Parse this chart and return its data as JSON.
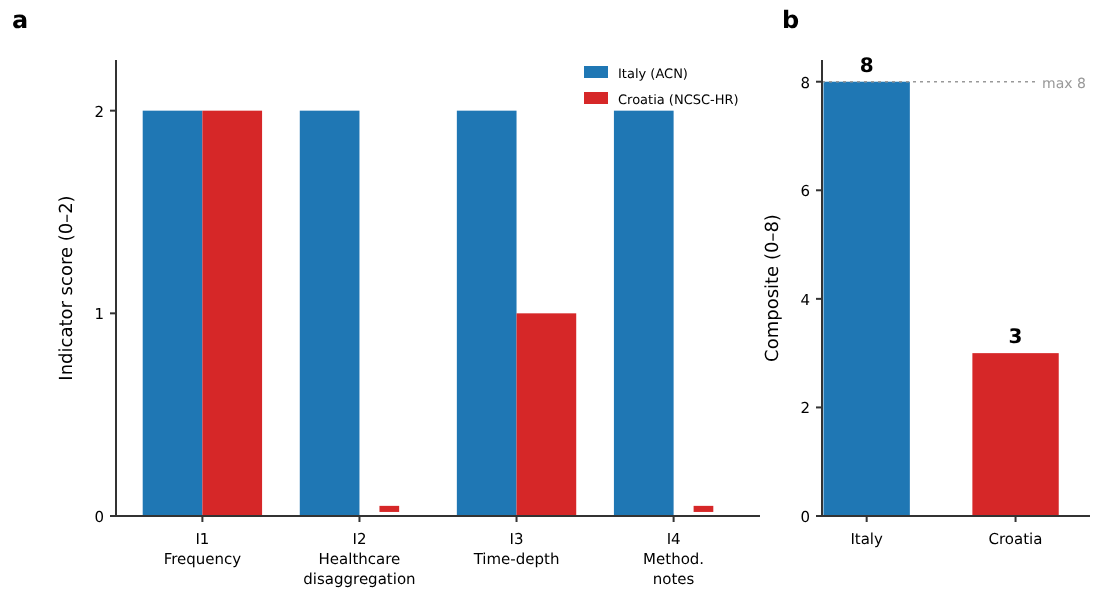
{
  "chart_data": [
    {
      "type": "bar",
      "title": "a",
      "ylabel": "Indicator score (0–2)",
      "categories": [
        "I1\nFrequency",
        "I2\nHealthcare\ndisaggregation",
        "I3\nTime-depth",
        "I4\nMethod.\nnotes"
      ],
      "series": [
        {
          "name": "Italy (ACN)",
          "color": "#1f77b4",
          "values": [
            2,
            2,
            2,
            2
          ]
        },
        {
          "name": "Croatia (NCSC-HR)",
          "color": "#d62728",
          "values": [
            2,
            0.03,
            1,
            0.03
          ],
          "base": [
            0,
            0.02,
            0,
            0.02
          ]
        }
      ],
      "ylim": [
        0,
        2.25
      ],
      "yticks": [
        0,
        1,
        2
      ],
      "legend": "top right",
      "grid": false
    },
    {
      "type": "bar",
      "title": "b",
      "ylabel": "Composite (0–8)",
      "categories": [
        "Italy",
        "Croatia"
      ],
      "values": [
        8,
        3
      ],
      "colors": [
        "#1f77b4",
        "#d62728"
      ],
      "ylim": [
        0,
        8.4
      ],
      "yticks": [
        0,
        2,
        4,
        6,
        8
      ],
      "data_labels": true,
      "grid": false,
      "ref_lines": [
        {
          "axis": "y",
          "value": 8,
          "label": "max 8",
          "color": "#999999",
          "line_style": "dotted"
        }
      ]
    }
  ]
}
